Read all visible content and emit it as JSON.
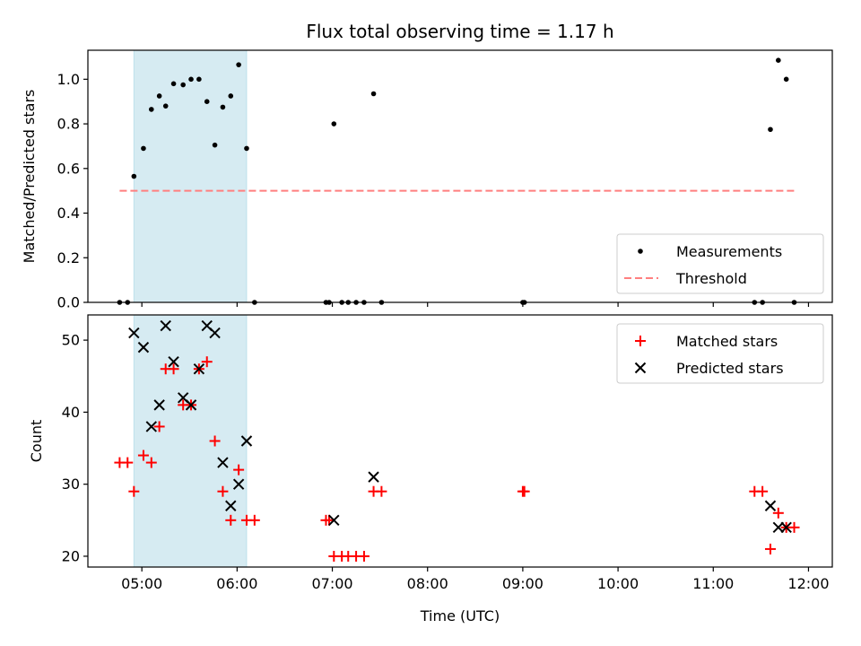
{
  "figure": {
    "title": "Flux total observing time = 1.17 h"
  },
  "chart_data": [
    {
      "type": "scatter",
      "panel": "top",
      "title": "Flux total observing time = 1.17 h",
      "xlabel": "",
      "ylabel": "Matched/Predicted stars",
      "xlim": [
        "04:26",
        "12:15"
      ],
      "ylim": [
        0,
        1.13
      ],
      "yticks": [
        0.0,
        0.2,
        0.4,
        0.6,
        0.8,
        1.0
      ],
      "ytick_labels": [
        "0.0",
        "0.2",
        "0.4",
        "0.6",
        "0.8",
        "1.0"
      ],
      "xticks": [
        "05:00",
        "06:00",
        "07:00",
        "08:00",
        "09:00",
        "10:00",
        "11:00",
        "12:00"
      ],
      "grid": false,
      "legend_position": "lower right",
      "shaded_region": {
        "x0": "04:55",
        "x1": "06:06",
        "color": "#add8e6"
      },
      "series": [
        {
          "name": "Measurements",
          "marker": "dot",
          "color": "#000000",
          "points": [
            [
              "04:46",
              0.0
            ],
            [
              "04:51",
              0.0
            ],
            [
              "04:55",
              0.565
            ],
            [
              "05:01",
              0.69
            ],
            [
              "05:06",
              0.865
            ],
            [
              "05:11",
              0.925
            ],
            [
              "05:15",
              0.88
            ],
            [
              "05:20",
              0.98
            ],
            [
              "05:26",
              0.975
            ],
            [
              "05:31",
              1.0
            ],
            [
              "05:36",
              1.0
            ],
            [
              "05:41",
              0.9
            ],
            [
              "05:46",
              0.705
            ],
            [
              "05:51",
              0.875
            ],
            [
              "05:56",
              0.925
            ],
            [
              "06:01",
              1.065
            ],
            [
              "06:06",
              0.69
            ],
            [
              "06:11",
              0.0
            ],
            [
              "06:56",
              0.0
            ],
            [
              "06:58",
              0.0
            ],
            [
              "07:01",
              0.8
            ],
            [
              "07:06",
              0.0
            ],
            [
              "07:10",
              0.0
            ],
            [
              "07:15",
              0.0
            ],
            [
              "07:20",
              0.0
            ],
            [
              "07:26",
              0.935
            ],
            [
              "07:31",
              0.0
            ],
            [
              "09:00",
              0.0
            ],
            [
              "09:01",
              0.0
            ],
            [
              "11:26",
              0.0
            ],
            [
              "11:31",
              0.0
            ],
            [
              "11:36",
              0.775
            ],
            [
              "11:41",
              1.085
            ],
            [
              "11:46",
              1.0
            ],
            [
              "11:51",
              0.0
            ]
          ]
        },
        {
          "name": "Threshold",
          "line_style": "dashed",
          "color": "#ff7f7f",
          "points": [
            [
              "04:46",
              0.5
            ],
            [
              "11:51",
              0.5
            ]
          ]
        }
      ]
    },
    {
      "type": "scatter",
      "panel": "bottom",
      "xlabel": "Time (UTC)",
      "ylabel": "Count",
      "xlim": [
        "04:26",
        "12:15"
      ],
      "ylim": [
        18.5,
        53.5
      ],
      "yticks": [
        20,
        30,
        40,
        50
      ],
      "ytick_labels": [
        "20",
        "30",
        "40",
        "50"
      ],
      "xticks": [
        "05:00",
        "06:00",
        "07:00",
        "08:00",
        "09:00",
        "10:00",
        "11:00",
        "12:00"
      ],
      "xtick_labels": [
        "05:00",
        "06:00",
        "07:00",
        "08:00",
        "09:00",
        "10:00",
        "11:00",
        "12:00"
      ],
      "grid": false,
      "legend_position": "upper right",
      "shaded_region": {
        "x0": "04:55",
        "x1": "06:06",
        "color": "#add8e6"
      },
      "series": [
        {
          "name": "Matched stars",
          "marker": "plus",
          "color": "#ff0000",
          "points": [
            [
              "04:46",
              33
            ],
            [
              "04:51",
              33
            ],
            [
              "04:55",
              29
            ],
            [
              "05:01",
              34
            ],
            [
              "05:06",
              33
            ],
            [
              "05:11",
              38
            ],
            [
              "05:15",
              46
            ],
            [
              "05:20",
              46
            ],
            [
              "05:26",
              41
            ],
            [
              "05:31",
              41
            ],
            [
              "05:36",
              46
            ],
            [
              "05:41",
              47
            ],
            [
              "05:46",
              36
            ],
            [
              "05:51",
              29
            ],
            [
              "05:56",
              25
            ],
            [
              "06:01",
              32
            ],
            [
              "06:06",
              25
            ],
            [
              "06:11",
              25
            ],
            [
              "06:56",
              25
            ],
            [
              "06:58",
              25
            ],
            [
              "07:01",
              20
            ],
            [
              "07:06",
              20
            ],
            [
              "07:10",
              20
            ],
            [
              "07:15",
              20
            ],
            [
              "07:20",
              20
            ],
            [
              "07:26",
              29
            ],
            [
              "07:31",
              29
            ],
            [
              "09:00",
              29
            ],
            [
              "09:01",
              29
            ],
            [
              "11:26",
              29
            ],
            [
              "11:31",
              29
            ],
            [
              "11:36",
              21
            ],
            [
              "11:41",
              26
            ],
            [
              "11:46",
              24
            ],
            [
              "11:51",
              24
            ]
          ]
        },
        {
          "name": "Predicted stars",
          "marker": "x",
          "color": "#000000",
          "points": [
            [
              "04:55",
              51
            ],
            [
              "05:01",
              49
            ],
            [
              "05:06",
              38
            ],
            [
              "05:11",
              41
            ],
            [
              "05:15",
              52
            ],
            [
              "05:20",
              47
            ],
            [
              "05:26",
              42
            ],
            [
              "05:31",
              41
            ],
            [
              "05:36",
              46
            ],
            [
              "05:41",
              52
            ],
            [
              "05:46",
              51
            ],
            [
              "05:51",
              33
            ],
            [
              "05:56",
              27
            ],
            [
              "06:01",
              30
            ],
            [
              "06:06",
              36
            ],
            [
              "07:01",
              25
            ],
            [
              "07:26",
              31
            ],
            [
              "11:36",
              27
            ],
            [
              "11:41",
              24
            ],
            [
              "11:46",
              24
            ]
          ]
        }
      ]
    }
  ]
}
